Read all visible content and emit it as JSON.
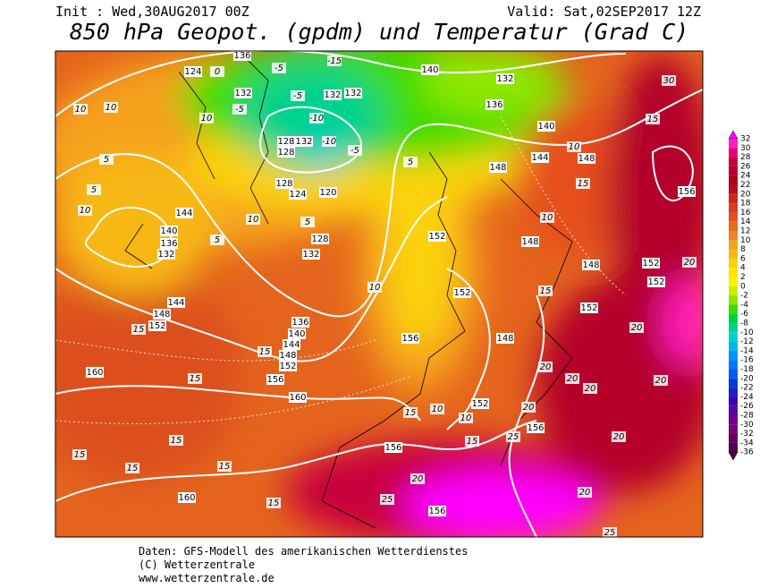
{
  "header": {
    "init": "Init : Wed,30AUG2017 00Z",
    "valid": "Valid: Sat,02SEP2017 12Z",
    "title": "850 hPa Geopot. (gpdm) und Temperatur (Grad C)"
  },
  "colorbar": {
    "labels": [
      32,
      30,
      28,
      26,
      24,
      22,
      20,
      18,
      16,
      14,
      12,
      10,
      8,
      6,
      4,
      2,
      0,
      -2,
      -4,
      -6,
      -8,
      -10,
      -12,
      -14,
      -16,
      -18,
      -20,
      -22,
      -24,
      -26,
      -28,
      -30,
      -32,
      -34,
      -36
    ],
    "colors": [
      "#ff00ff",
      "#ff1fb8",
      "#e6007a",
      "#c8003c",
      "#b4002a",
      "#a8001e",
      "#b40f1e",
      "#c8281e",
      "#dc3c1e",
      "#e6501e",
      "#ee6a1e",
      "#f08228",
      "#f5a01e",
      "#f7b814",
      "#fad20a",
      "#ffe600",
      "#fff000",
      "#c8f000",
      "#8ee600",
      "#3cdc00",
      "#00d23c",
      "#00d28c",
      "#00d2c8",
      "#00b4f0",
      "#0096ff",
      "#0078ff",
      "#005af0",
      "#003cdc",
      "#1e1ec8",
      "#3c00b4",
      "#5a00a0",
      "#6e008c",
      "#780078",
      "#640064",
      "#500050"
    ]
  },
  "map": {
    "geopotential_labels": [
      124,
      136,
      132,
      132,
      132,
      140,
      132,
      136,
      140,
      144,
      148,
      128,
      132,
      128,
      128,
      124,
      120,
      128,
      132,
      144,
      140,
      136,
      132,
      144,
      148,
      152,
      136,
      140,
      144,
      148,
      152,
      156,
      160,
      160,
      152,
      152,
      156,
      148,
      148,
      148,
      152,
      152,
      156,
      152,
      152,
      156,
      156,
      160,
      156,
      148
    ],
    "temperature_labels": [
      10,
      10,
      5,
      5,
      10,
      5,
      -5,
      -5,
      -5,
      -10,
      -10,
      -5,
      5,
      5,
      10,
      10,
      15,
      15,
      15,
      15,
      15,
      15,
      15,
      15,
      15,
      10,
      10,
      15,
      25,
      20,
      20,
      25,
      20,
      20,
      20,
      20,
      20,
      20,
      25,
      30,
      15,
      15,
      10,
      20,
      0,
      -15,
      10,
      15,
      20,
      10
    ]
  },
  "footer": {
    "lines": [
      "Daten: GFS-Modell des amerikanischen Wetterdienstes",
      "(C) Wetterzentrale",
      "www.wetterzentrale.de"
    ]
  }
}
